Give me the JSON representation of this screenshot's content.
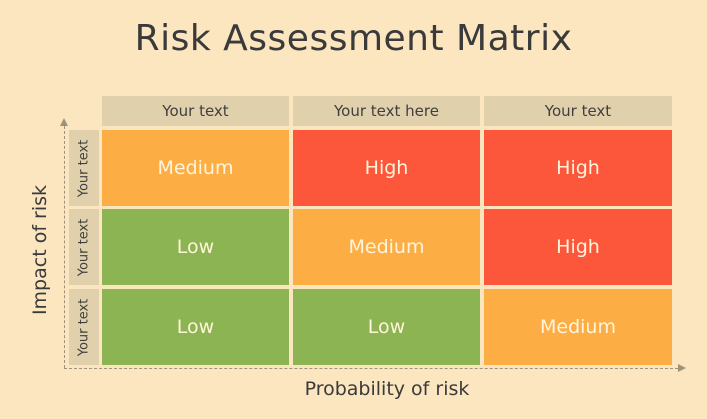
{
  "title": "Risk Assessment Matrix",
  "columns": [
    "Your text",
    "Your text here",
    "Your text"
  ],
  "rows": [
    "Your text",
    "Your text",
    "Your text"
  ],
  "cells": [
    [
      "Medium",
      "High",
      "High"
    ],
    [
      "Low",
      "Medium",
      "High"
    ],
    [
      "Low",
      "Low",
      "Medium"
    ]
  ],
  "x_axis_label": "Probability of risk",
  "y_axis_label": "Impact of risk",
  "colors": {
    "background": "#fbe6c0",
    "header": "#e0d1ac",
    "low": "#8db453",
    "medium": "#fcae45",
    "high": "#fc573a"
  }
}
